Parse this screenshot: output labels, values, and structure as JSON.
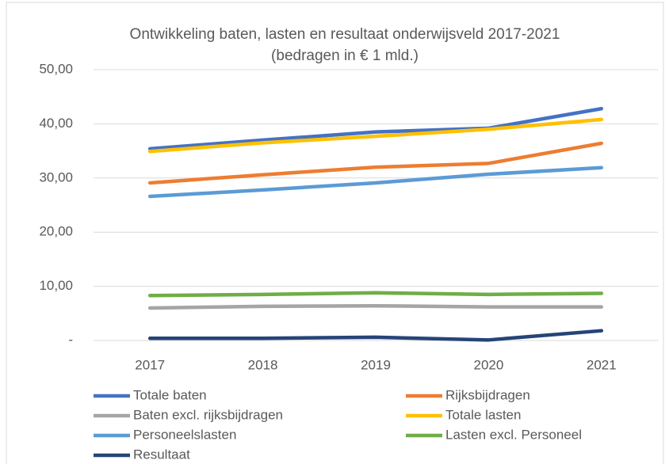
{
  "chart_data": {
    "type": "line",
    "title": "Ontwikkeling baten, lasten en resultaat onderwijsveld 2017-2021",
    "subtitle": "(bedragen in € 1 mld.)",
    "categories": [
      "2017",
      "2018",
      "2019",
      "2020",
      "2021"
    ],
    "series": [
      {
        "name": "Totale baten",
        "color": "#4472c4",
        "values": [
          35.4,
          37.0,
          38.5,
          39.2,
          42.8
        ]
      },
      {
        "name": "Rijksbijdragen",
        "color": "#ed7d31",
        "values": [
          29.1,
          30.6,
          32.0,
          32.7,
          36.4
        ]
      },
      {
        "name": "Baten excl. rijksbijdragen",
        "color": "#a5a5a5",
        "values": [
          6.0,
          6.3,
          6.4,
          6.2,
          6.2
        ]
      },
      {
        "name": "Totale lasten",
        "color": "#ffc000",
        "values": [
          34.9,
          36.5,
          37.7,
          39.0,
          40.8
        ]
      },
      {
        "name": "Personeelslasten",
        "color": "#5b9bd5",
        "values": [
          26.6,
          27.8,
          29.1,
          30.7,
          31.9
        ]
      },
      {
        "name": "Lasten excl. Personeel",
        "color": "#70ad47",
        "values": [
          8.3,
          8.5,
          8.8,
          8.5,
          8.7
        ]
      },
      {
        "name": "Resultaat",
        "color": "#264478",
        "values": [
          0.4,
          0.4,
          0.6,
          0.1,
          1.8
        ]
      }
    ],
    "ylim": [
      0,
      50
    ],
    "yticks": [
      {
        "value": 0,
        "label": "-"
      },
      {
        "value": 10,
        "label": "10,00"
      },
      {
        "value": 20,
        "label": "20,00"
      },
      {
        "value": 30,
        "label": "30,00"
      },
      {
        "value": 40,
        "label": "40,00"
      },
      {
        "value": 50,
        "label": "50,00"
      }
    ],
    "grid": true,
    "legend": "bottom"
  }
}
